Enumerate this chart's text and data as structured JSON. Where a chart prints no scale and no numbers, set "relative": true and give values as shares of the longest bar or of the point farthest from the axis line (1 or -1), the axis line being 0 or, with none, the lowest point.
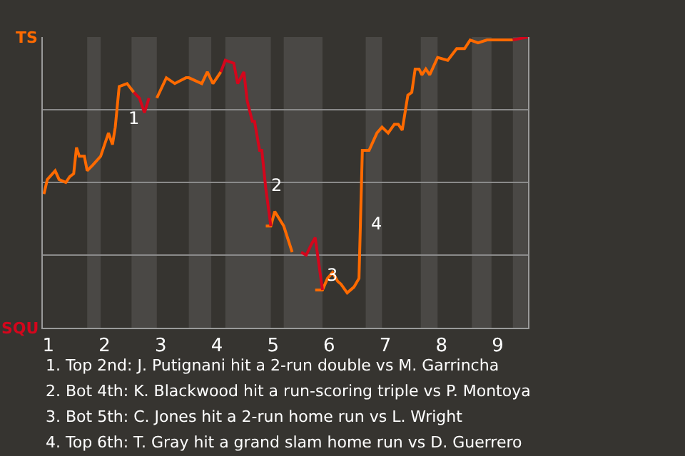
{
  "chart_data": {
    "type": "line",
    "relative": true,
    "x": [
      0.92,
      0.98,
      1.12,
      1.19,
      1.31,
      1.38,
      1.45,
      1.5,
      1.55,
      1.64,
      1.69,
      1.79,
      1.93,
      2.0,
      2.07,
      2.14,
      2.19,
      2.26,
      2.4,
      2.52,
      2.62,
      2.71,
      2.79,
      2.93,
      3.1,
      3.25,
      3.45,
      3.5,
      3.73,
      3.83,
      3.93,
      4.07,
      4.15,
      4.3,
      4.37,
      4.48,
      4.54,
      4.63,
      4.67,
      4.76,
      4.8,
      4.87,
      4.96,
      5.03,
      5.19,
      5.34,
      5.5,
      5.59,
      5.69,
      5.75,
      5.88,
      5.97,
      6.06,
      6.15,
      6.21,
      6.32,
      6.44,
      6.53,
      6.59,
      6.71,
      6.85,
      6.94,
      7.05,
      7.16,
      7.23,
      7.3,
      7.4,
      7.47,
      7.53,
      7.6,
      7.65,
      7.72,
      7.79,
      7.93,
      8.11,
      8.27,
      8.41,
      8.51,
      8.65,
      8.81,
      9.27,
      9.54
    ],
    "series": [
      {
        "color": "#ff6a00",
        "values": [
          0.46,
          0.51,
          0.54,
          0.51,
          0.5,
          0.52,
          0.53,
          0.62,
          0.59,
          0.59,
          0.54,
          0.56,
          0.59,
          0.63,
          0.67,
          0.63,
          0.69,
          0.83,
          0.84,
          0.81,
          null,
          null,
          null,
          0.79,
          0.86,
          0.84,
          0.86,
          0.86,
          0.84,
          0.88,
          0.84,
          0.88,
          null,
          null,
          null,
          null,
          null,
          null,
          null,
          null,
          null,
          0.35,
          0.35,
          0.4,
          0.35,
          0.26,
          null,
          null,
          null,
          0.13,
          0.13,
          0.17,
          0.19,
          0.16,
          0.15,
          0.12,
          0.14,
          0.17,
          0.61,
          0.61,
          0.67,
          0.69,
          0.67,
          0.7,
          0.7,
          0.68,
          0.8,
          0.81,
          0.89,
          0.89,
          0.87,
          0.89,
          0.87,
          0.93,
          0.92,
          0.96,
          0.96,
          0.99,
          0.98,
          0.99,
          0.99,
          null
        ]
      },
      {
        "color": "#d4061c",
        "values": [
          null,
          null,
          null,
          null,
          null,
          null,
          null,
          null,
          null,
          null,
          null,
          null,
          null,
          null,
          null,
          null,
          null,
          null,
          null,
          0.81,
          0.79,
          0.74,
          0.79,
          null,
          null,
          null,
          null,
          null,
          null,
          null,
          null,
          0.88,
          0.92,
          0.91,
          0.84,
          0.88,
          0.78,
          0.71,
          0.71,
          0.61,
          0.61,
          0.48,
          0.35,
          null,
          null,
          null,
          0.26,
          0.25,
          0.29,
          0.31,
          0.13,
          null,
          null,
          null,
          null,
          null,
          null,
          null,
          null,
          null,
          null,
          null,
          null,
          null,
          null,
          null,
          null,
          null,
          null,
          null,
          null,
          null,
          null,
          null,
          null,
          null,
          null,
          null,
          null,
          null,
          0.99,
          1.0
        ]
      }
    ],
    "xlim": [
      0.9,
      9.54
    ],
    "xticks": [
      1,
      2,
      3,
      4,
      5,
      6,
      7,
      8,
      9
    ],
    "grid": "y",
    "marker": "none",
    "line_style": "solid",
    "bands": [
      {
        "axis": "x",
        "from": 1.69,
        "to": 1.93,
        "color": "#4a4845"
      },
      {
        "axis": "x",
        "from": 2.48,
        "to": 2.93,
        "color": "#4a4845"
      },
      {
        "axis": "x",
        "from": 3.5,
        "to": 3.9,
        "color": "#4a4845"
      },
      {
        "axis": "x",
        "from": 4.15,
        "to": 4.96,
        "color": "#4a4845"
      },
      {
        "axis": "x",
        "from": 5.19,
        "to": 5.88,
        "color": "#4a4845"
      },
      {
        "axis": "x",
        "from": 6.65,
        "to": 6.94,
        "color": "#4a4845"
      },
      {
        "axis": "x",
        "from": 7.63,
        "to": 7.93,
        "color": "#4a4845"
      },
      {
        "axis": "x",
        "from": 8.54,
        "to": 8.89,
        "color": "#4a4845"
      },
      {
        "axis": "x",
        "from": 9.27,
        "to": 9.54,
        "color": "#4a4845"
      }
    ],
    "annotations": [
      "TS",
      "SQU",
      {
        "text": "1",
        "x": 2.36,
        "y": 0.72
      },
      {
        "text": "2",
        "x": 4.89,
        "y": 0.49
      },
      {
        "text": "3",
        "x": 5.88,
        "y": 0.18
      },
      {
        "text": "4",
        "x": 6.68,
        "y": 0.36
      },
      "1. Top 2nd: J. Putignani hit a 2-run double vs M. Garrincha",
      "2. Bot 4th: K. Blackwood hit a run-scoring triple vs P. Montoya",
      "3. Bot 5th: C. Jones hit a 2-run home run vs L. Wright",
      "4. Top 6th: T. Gray hit a grand slam home run vs D. Guerrero"
    ]
  }
}
